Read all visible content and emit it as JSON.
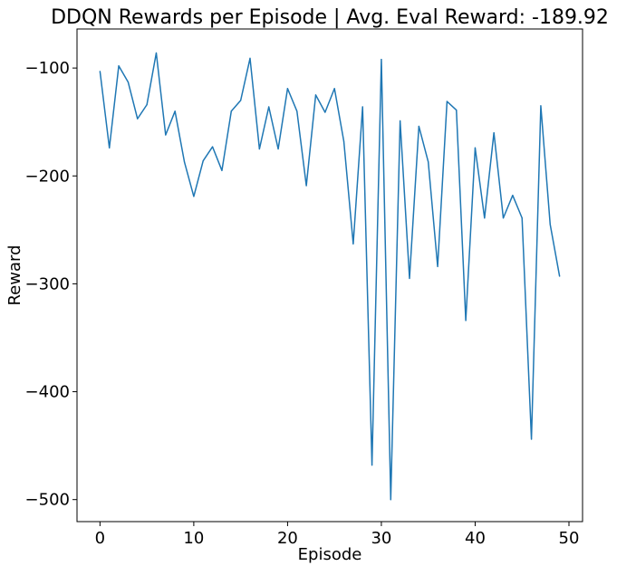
{
  "chart_data": {
    "type": "line",
    "title": "DDQN Rewards per Episode | Avg. Eval Reward: -189.92",
    "xlabel": "Episode",
    "ylabel": "Reward",
    "xlim": [
      -2.45,
      51.45
    ],
    "ylim": [
      -520.4,
      -63.8
    ],
    "xticks": [
      0,
      10,
      20,
      30,
      40,
      50
    ],
    "yticks": [
      -500,
      -400,
      -300,
      -200,
      -100
    ],
    "ytick_labels": [
      "−500",
      "−400",
      "−300",
      "−200",
      "−100"
    ],
    "grid": false,
    "legend": "none",
    "series": [
      {
        "color": "#1f77b4",
        "x": [
          0,
          1,
          2,
          3,
          4,
          5,
          6,
          7,
          8,
          9,
          10,
          11,
          12,
          13,
          14,
          15,
          16,
          17,
          18,
          19,
          20,
          21,
          22,
          23,
          24,
          25,
          26,
          27,
          28,
          29,
          30,
          31,
          32,
          33,
          34,
          35,
          36,
          37,
          38,
          39,
          40,
          41,
          42,
          43,
          44,
          45,
          46,
          47,
          48,
          49
        ],
        "values": [
          -103,
          -174,
          -98,
          -113,
          -147,
          -134,
          -86,
          -162,
          -140,
          -187,
          -219,
          -186,
          -173,
          -195,
          -140,
          -130,
          -91,
          -175,
          -136,
          -175,
          -119,
          -140,
          -209,
          -125,
          -141,
          -119,
          -168,
          -263,
          -136,
          -468,
          -92,
          -500,
          -149,
          -295,
          -154,
          -187,
          -284,
          -131,
          -139,
          -334,
          -174,
          -239,
          -160,
          -239,
          -218,
          -239,
          -444,
          -135,
          -245,
          -293
        ]
      }
    ]
  }
}
